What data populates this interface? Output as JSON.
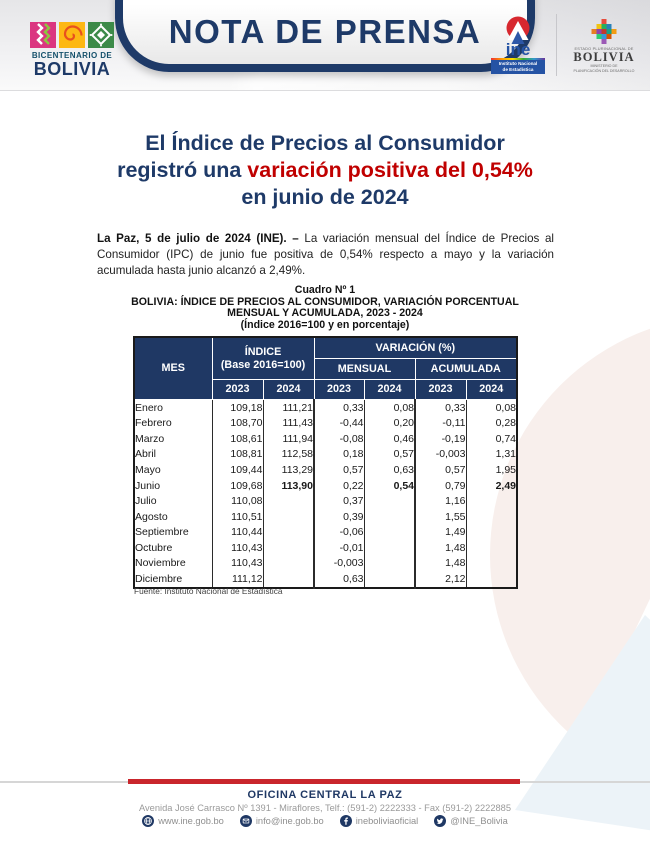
{
  "colors": {
    "navy": "#1e3a68",
    "red_highlight": "#c00000",
    "table_header_bg": "#1f3864",
    "footer_bar_red": "#c9252c"
  },
  "header": {
    "banner_title": "NOTA DE PRENSA",
    "bicentenario": {
      "line1": "BICENTENARIO DE",
      "line2": "BOLIVIA"
    },
    "ine_logo": {
      "name": "ine",
      "sub1": "Instituto Nacional",
      "sub2": "de Estadística"
    },
    "bolivia_logo": {
      "line1": "ESTADO PLURINACIONAL DE",
      "name": "BOLIVIA",
      "ministry1": "MINISTERIO DE",
      "ministry2": "PLANIFICACIÓN DEL DESARROLLO"
    }
  },
  "title": {
    "line1": "El Índice de Precios al Consumidor",
    "line2_prefix": "registró una ",
    "line2_highlight": "variación positiva del 0,54%",
    "line3": "en junio de 2024"
  },
  "para": {
    "lead": "La Paz, 5 de julio de 2024 (INE). –",
    "body": " La variación mensual del Índice de Precios al Consumidor (IPC) de junio fue positiva de 0,54% respecto a mayo y la variación acumulada hasta junio alcanzó a 2,49%."
  },
  "table": {
    "caption": [
      "Cuadro Nº 1",
      "BOLIVIA: ÍNDICE DE PRECIOS AL CONSUMIDOR, VARIACIÓN PORCENTUAL",
      "MENSUAL Y ACUMULADA, 2023 - 2024",
      "(Índice 2016=100 y en porcentaje)"
    ],
    "headers": {
      "mes": "MES",
      "indice_line1": "ÍNDICE",
      "indice_line2": "(Base 2016=100)",
      "variacion": "VARIACIÓN (%)",
      "mensual": "MENSUAL",
      "acumulada": "ACUMULADA",
      "years": [
        "2023",
        "2024",
        "2023",
        "2024",
        "2023",
        "2024"
      ]
    },
    "rows": [
      {
        "mes": "Enero",
        "values": [
          "109,18",
          "111,21",
          "0,33",
          "0,08",
          "0,33",
          "0,08"
        ],
        "bold_2024": false
      },
      {
        "mes": "Febrero",
        "values": [
          "108,70",
          "111,43",
          "-0,44",
          "0,20",
          "-0,11",
          "0,28"
        ],
        "bold_2024": false
      },
      {
        "mes": "Marzo",
        "values": [
          "108,61",
          "111,94",
          "-0,08",
          "0,46",
          "-0,19",
          "0,74"
        ],
        "bold_2024": false
      },
      {
        "mes": "Abril",
        "values": [
          "108,81",
          "112,58",
          "0,18",
          "0,57",
          "-0,003",
          "1,31"
        ],
        "bold_2024": false
      },
      {
        "mes": "Mayo",
        "values": [
          "109,44",
          "113,29",
          "0,57",
          "0,63",
          "0,57",
          "1,95"
        ],
        "bold_2024": false
      },
      {
        "mes": "Junio",
        "values": [
          "109,68",
          "113,90",
          "0,22",
          "0,54",
          "0,79",
          "2,49"
        ],
        "bold_2024": true
      },
      {
        "mes": "Julio",
        "values": [
          "110,08",
          "",
          "0,37",
          "",
          "1,16",
          ""
        ],
        "bold_2024": false
      },
      {
        "mes": "Agosto",
        "values": [
          "110,51",
          "",
          "0,39",
          "",
          "1,55",
          ""
        ],
        "bold_2024": false
      },
      {
        "mes": "Septiembre",
        "values": [
          "110,44",
          "",
          "-0,06",
          "",
          "1,49",
          ""
        ],
        "bold_2024": false
      },
      {
        "mes": "Octubre",
        "values": [
          "110,43",
          "",
          "-0,01",
          "",
          "1,48",
          ""
        ],
        "bold_2024": false
      },
      {
        "mes": "Noviembre",
        "values": [
          "110,43",
          "",
          "-0,003",
          "",
          "1,48",
          ""
        ],
        "bold_2024": false
      },
      {
        "mes": "Diciembre",
        "values": [
          "111,12",
          "",
          "0,63",
          "",
          "2,12",
          ""
        ],
        "bold_2024": false
      }
    ],
    "source": "Fuente: Instituto Nacional de Estadística"
  },
  "footer": {
    "office_title": "OFICINA CENTRAL LA PAZ",
    "address": "Avenida José Carrasco Nº 1391 - Miraflores, Telf.: (591-2) 2222333 - Fax (591-2) 2222885",
    "contacts": [
      {
        "icon": "globe-icon",
        "label": "www.ine.gob.bo"
      },
      {
        "icon": "email-icon",
        "label": "info@ine.gob.bo"
      },
      {
        "icon": "facebook-icon",
        "label": "ineboliviaoficial"
      },
      {
        "icon": "twitter-icon",
        "label": "@INE_Bolivia"
      }
    ]
  }
}
